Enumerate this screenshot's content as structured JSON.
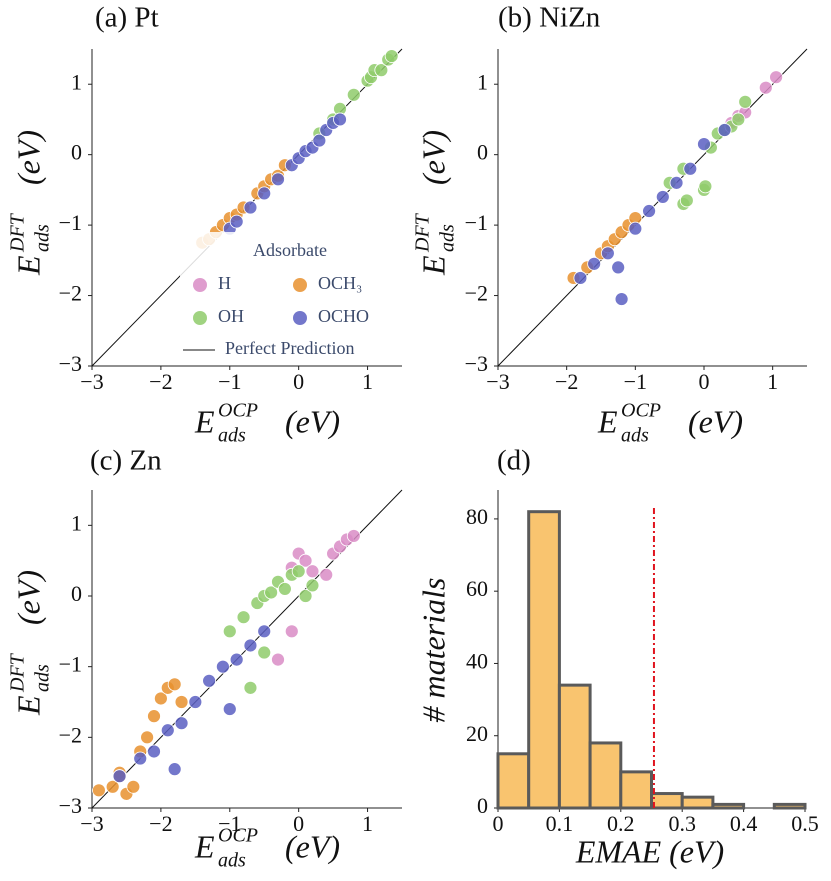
{
  "chart_data": [
    {
      "type": "scatter",
      "title": "(a) Pt",
      "xlabel": {
        "base": "E",
        "sub": "ads",
        "sup": "OCP",
        "unit": "(eV)"
      },
      "ylabel": {
        "base": "E",
        "sub": "ads",
        "sup": "DFT",
        "unit": "(eV)"
      },
      "xlim": [
        -3,
        1.5
      ],
      "ylim": [
        -3,
        1.5
      ],
      "xticks": [
        {
          "value": -3,
          "label": "−3"
        },
        {
          "value": -2,
          "label": "−2"
        },
        {
          "value": -1,
          "label": "−1"
        },
        0,
        1
      ],
      "yticks": [
        {
          "value": -3,
          "label": "−3"
        },
        {
          "value": -2,
          "label": "−2"
        },
        {
          "value": -1,
          "label": "−1"
        },
        0,
        1
      ],
      "diagonal": true,
      "legend": {
        "title": "Adsorbate",
        "line_label": "Perfect Prediction"
      },
      "series": [
        {
          "name": "H",
          "color": "#d98cc6",
          "x": [],
          "values": []
        },
        {
          "name": "OCH₃",
          "color": "#e8912e",
          "x": [
            -1.4,
            -1.3,
            -1.2,
            -1.1,
            -1.0,
            -0.9,
            -0.8,
            -0.6,
            -0.5,
            -0.4,
            -0.3,
            -0.2
          ],
          "values": [
            -1.25,
            -1.2,
            -1.1,
            -1.0,
            -0.9,
            -0.85,
            -0.75,
            -0.55,
            -0.45,
            -0.35,
            -0.3,
            -0.15
          ]
        },
        {
          "name": "OH",
          "color": "#8fcb6b",
          "x": [
            0.3,
            0.5,
            0.6,
            0.8,
            1.0,
            1.05,
            1.1,
            1.2,
            1.3,
            1.35
          ],
          "values": [
            0.3,
            0.5,
            0.65,
            0.85,
            1.05,
            1.1,
            1.2,
            1.2,
            1.35,
            1.4
          ]
        },
        {
          "name": "OCHO",
          "color": "#5b5fc2",
          "x": [
            -1.0,
            -0.9,
            -0.7,
            -0.5,
            -0.3,
            -0.1,
            0.0,
            0.1,
            0.2,
            0.3,
            0.4,
            0.5,
            0.6
          ],
          "values": [
            -1.05,
            -0.95,
            -0.75,
            -0.55,
            -0.35,
            -0.15,
            -0.05,
            0.05,
            0.1,
            0.2,
            0.35,
            0.45,
            0.5
          ]
        }
      ]
    },
    {
      "type": "scatter",
      "title": "(b) NiZn",
      "xlabel": {
        "base": "E",
        "sub": "ads",
        "sup": "OCP",
        "unit": "(eV)"
      },
      "ylabel": {
        "base": "E",
        "sub": "ads",
        "sup": "DFT",
        "unit": "(eV)"
      },
      "xlim": [
        -3,
        1.5
      ],
      "ylim": [
        -3,
        1.5
      ],
      "xticks": [
        {
          "value": -3,
          "label": "−3"
        },
        {
          "value": -2,
          "label": "−2"
        },
        {
          "value": -1,
          "label": "−1"
        },
        0,
        1
      ],
      "yticks": [
        {
          "value": -3,
          "label": "−3"
        },
        {
          "value": -2,
          "label": "−2"
        },
        {
          "value": -1,
          "label": "−1"
        },
        0,
        1
      ],
      "diagonal": true,
      "series": [
        {
          "color": "#d98cc6",
          "x": [
            0.4,
            0.5,
            0.6,
            0.9,
            1.05
          ],
          "values": [
            0.45,
            0.55,
            0.6,
            0.95,
            1.1
          ]
        },
        {
          "color": "#e8912e",
          "x": [
            -1.9,
            -1.7,
            -1.5,
            -1.4,
            -1.3,
            -1.2,
            -1.1,
            -1.0
          ],
          "values": [
            -1.75,
            -1.6,
            -1.4,
            -1.3,
            -1.2,
            -1.1,
            -1.0,
            -0.9
          ]
        },
        {
          "color": "#8fcb6b",
          "x": [
            -0.3,
            -0.25,
            0.0,
            0.02,
            0.1,
            0.2,
            0.3,
            0.4,
            0.5,
            0.6,
            -0.5,
            -0.3
          ],
          "values": [
            -0.7,
            -0.65,
            -0.5,
            -0.45,
            0.1,
            0.3,
            0.35,
            0.4,
            0.5,
            0.75,
            -0.4,
            -0.2
          ]
        },
        {
          "color": "#5b5fc2",
          "x": [
            -1.8,
            -1.6,
            -1.4,
            -1.25,
            -1.2,
            -1.0,
            -0.8,
            -0.6,
            -0.4,
            -0.2,
            0.0,
            0.3
          ],
          "values": [
            -1.75,
            -1.55,
            -1.4,
            -1.6,
            -2.05,
            -1.05,
            -0.8,
            -0.6,
            -0.4,
            -0.2,
            0.15,
            0.35
          ]
        }
      ]
    },
    {
      "type": "scatter",
      "title": "(c) Zn",
      "xlabel": {
        "base": "E",
        "sub": "ads",
        "sup": "OCP",
        "unit": "(eV)"
      },
      "ylabel": {
        "base": "E",
        "sub": "ads",
        "sup": "DFT",
        "unit": "(eV)"
      },
      "xlim": [
        -3,
        1.5
      ],
      "ylim": [
        -3,
        1.5
      ],
      "xticks": [
        {
          "value": -3,
          "label": "−3"
        },
        {
          "value": -2,
          "label": "−2"
        },
        {
          "value": -1,
          "label": "−1"
        },
        0,
        1
      ],
      "yticks": [
        {
          "value": -3,
          "label": "−3"
        },
        {
          "value": -2,
          "label": "−2"
        },
        {
          "value": -1,
          "label": "−1"
        },
        0,
        1
      ],
      "diagonal": true,
      "series": [
        {
          "color": "#d98cc6",
          "x": [
            -0.1,
            0.0,
            0.1,
            0.2,
            0.4,
            0.5,
            0.6,
            0.7,
            0.8,
            -0.3,
            -0.1
          ],
          "values": [
            0.4,
            0.6,
            0.5,
            0.35,
            0.3,
            0.6,
            0.7,
            0.8,
            0.85,
            -0.9,
            -0.5
          ]
        },
        {
          "color": "#e8912e",
          "x": [
            -2.9,
            -2.7,
            -2.6,
            -2.5,
            -2.3,
            -2.2,
            -2.1,
            -2.0,
            -1.9,
            -1.8,
            -1.7,
            -2.4,
            -2.6
          ],
          "values": [
            -2.75,
            -2.7,
            -2.5,
            -2.8,
            -2.2,
            -2.0,
            -1.7,
            -1.45,
            -1.3,
            -1.25,
            -1.5,
            -2.7,
            -2.55
          ]
        },
        {
          "color": "#8fcb6b",
          "x": [
            -1.0,
            -0.8,
            -0.6,
            -0.5,
            -0.4,
            -0.3,
            -0.2,
            -0.1,
            0.0,
            0.1,
            0.2,
            -0.7,
            -0.5
          ],
          "values": [
            -0.5,
            -0.3,
            -0.1,
            0.0,
            0.05,
            0.2,
            0.1,
            0.3,
            0.35,
            0.0,
            0.15,
            -1.3,
            -0.8
          ]
        },
        {
          "color": "#5b5fc2",
          "x": [
            -2.6,
            -2.3,
            -2.1,
            -1.9,
            -1.7,
            -1.5,
            -1.3,
            -1.1,
            -0.9,
            -0.7,
            -0.5,
            -1.0,
            -1.8
          ],
          "values": [
            -2.55,
            -2.3,
            -2.2,
            -1.9,
            -1.8,
            -1.5,
            -1.2,
            -1.0,
            -0.9,
            -0.7,
            -0.5,
            -1.6,
            -2.45
          ]
        }
      ]
    },
    {
      "type": "histogram",
      "title": "(d)",
      "xlabel": "EMAE (eV)",
      "ylabel": "# materials",
      "bins": [
        0,
        0.05,
        0.1,
        0.15,
        0.2,
        0.25,
        0.3,
        0.35,
        0.4,
        0.45,
        0.5
      ],
      "values": [
        15,
        82,
        34,
        18,
        10,
        4,
        3,
        1,
        0,
        1
      ],
      "color": "#f9c46f",
      "edgecolor": "#5a5a5a",
      "xlim": [
        0,
        0.5
      ],
      "ylim": [
        0,
        88
      ],
      "xticks": [
        0,
        0.1,
        0.2,
        0.3,
        0.4,
        0.5
      ],
      "yticks": [
        0,
        20,
        40,
        60,
        80
      ],
      "vline": {
        "value": 0.254,
        "color": "#e0141e"
      }
    }
  ]
}
